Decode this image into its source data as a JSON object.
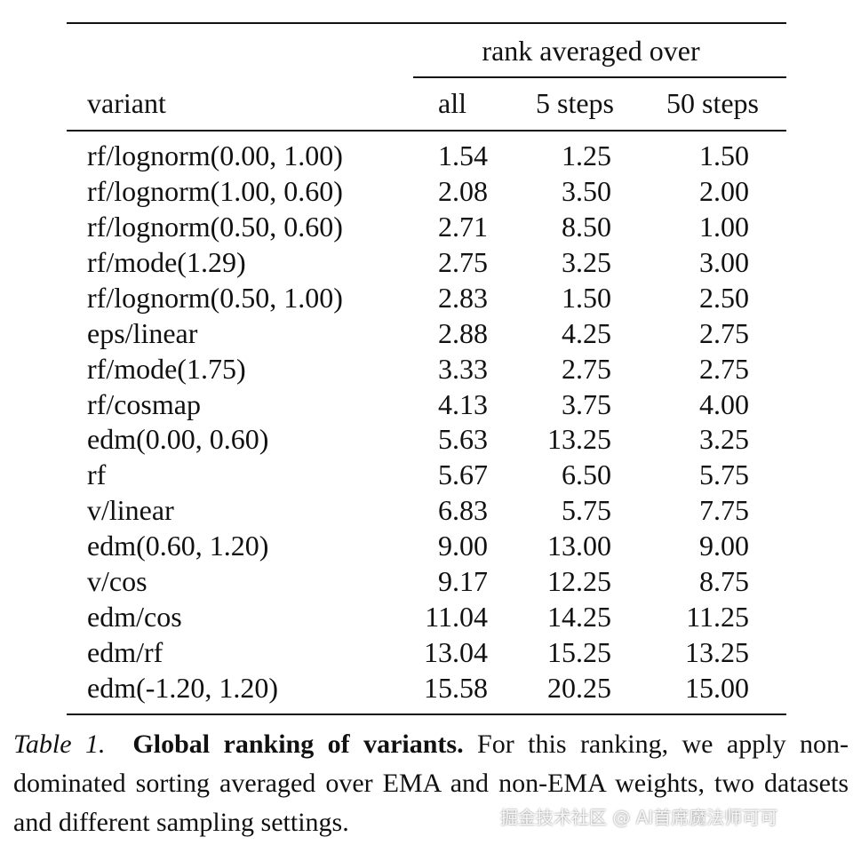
{
  "table": {
    "group_header": "rank averaged over",
    "columns": [
      "variant",
      "all",
      "5 steps",
      "50 steps"
    ],
    "rows": [
      [
        "rf/lognorm(0.00, 1.00)",
        "1.54",
        "1.25",
        "1.50"
      ],
      [
        "rf/lognorm(1.00, 0.60)",
        "2.08",
        "3.50",
        "2.00"
      ],
      [
        "rf/lognorm(0.50, 0.60)",
        "2.71",
        "8.50",
        "1.00"
      ],
      [
        "rf/mode(1.29)",
        "2.75",
        "3.25",
        "3.00"
      ],
      [
        "rf/lognorm(0.50, 1.00)",
        "2.83",
        "1.50",
        "2.50"
      ],
      [
        "eps/linear",
        "2.88",
        "4.25",
        "2.75"
      ],
      [
        "rf/mode(1.75)",
        "3.33",
        "2.75",
        "2.75"
      ],
      [
        "rf/cosmap",
        "4.13",
        "3.75",
        "4.00"
      ],
      [
        "edm(0.00, 0.60)",
        "5.63",
        "13.25",
        "3.25"
      ],
      [
        "rf",
        "5.67",
        "6.50",
        "5.75"
      ],
      [
        "v/linear",
        "6.83",
        "5.75",
        "7.75"
      ],
      [
        "edm(0.60, 1.20)",
        "9.00",
        "13.00",
        "9.00"
      ],
      [
        "v/cos",
        "9.17",
        "12.25",
        "8.75"
      ],
      [
        "edm/cos",
        "11.04",
        "14.25",
        "11.25"
      ],
      [
        "edm/rf",
        "13.04",
        "15.25",
        "13.25"
      ],
      [
        "edm(-1.20, 1.20)",
        "15.58",
        "20.25",
        "15.00"
      ]
    ]
  },
  "caption": {
    "label": "Table 1.",
    "title": "Global ranking of variants.",
    "text": "For this ranking, we apply non-dominated sorting averaged over EMA and non-EMA weights, two datasets and different sampling settings."
  },
  "watermark": "掘金技术社区 @ AI首席魔法师可可"
}
